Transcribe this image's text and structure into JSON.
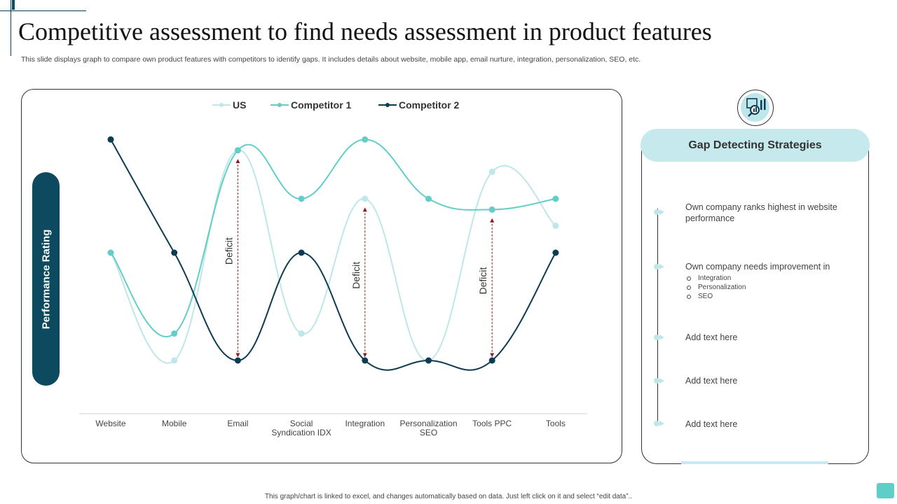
{
  "header": {
    "title": "Competitive assessment to find needs assessment in product features",
    "subtitle": "This slide displays graph to compare own product features with competitors to identify gaps. It includes details about website, mobile app, email nurture, integration, personalization, SEO,  etc."
  },
  "chart_data": {
    "type": "line",
    "smooth": true,
    "ylabel": "Performance Rating",
    "categories": [
      "Website",
      "Mobile",
      "Email",
      "Social Syndication IDX",
      "Integration",
      "Personalization SEO",
      "Tools PPC",
      "Tools"
    ],
    "category_lines": [
      [
        "Website"
      ],
      [
        "Mobile"
      ],
      [
        "Email"
      ],
      [
        "Social",
        "Syndication IDX"
      ],
      [
        "Integration"
      ],
      [
        "Personalization",
        "SEO"
      ],
      [
        "Tools PPC"
      ],
      [
        "Tools"
      ]
    ],
    "ylim": [
      0,
      6
    ],
    "grid": false,
    "legend_position": "top-center",
    "series": [
      {
        "name": "US",
        "color": "#bfe6ea",
        "values": [
          3,
          1,
          4.9,
          1.5,
          4,
          1,
          4.5,
          3.5
        ]
      },
      {
        "name": "Competitor 1",
        "color": "#63cdc8",
        "values": [
          3,
          1.5,
          4.9,
          4,
          5.1,
          4,
          3.8,
          4
        ]
      },
      {
        "name": "Competitor 2",
        "color": "#0d3b52",
        "values": [
          5.1,
          3,
          1,
          3,
          1,
          1,
          1,
          3
        ]
      }
    ],
    "annotations": [
      {
        "label": "Deficit",
        "category_index": 2,
        "from": 4.7,
        "to": 1.1
      },
      {
        "label": "Deficit",
        "category_index": 4,
        "from": 3.8,
        "to": 1.1
      },
      {
        "label": "Deficit",
        "category_index": 6,
        "from": 3.6,
        "to": 1.1
      }
    ],
    "annotation_color": "#8b1a1a"
  },
  "panel": {
    "title": "Gap Detecting Strategies",
    "icon": "magnifier-chart-icon",
    "items": [
      {
        "text": "Own company ranks highest in website performance",
        "sub": []
      },
      {
        "text": "Own company needs improvement  in",
        "sub": [
          "Integration",
          "Personalization",
          "SEO"
        ]
      },
      {
        "text": "Add text here",
        "sub": []
      },
      {
        "text": "Add text here",
        "sub": []
      },
      {
        "text": "Add text here",
        "sub": []
      }
    ]
  },
  "footer": {
    "note": "This graph/chart is linked to excel, and changes automatically based on data. Just left click on it and select “edit data”.."
  }
}
